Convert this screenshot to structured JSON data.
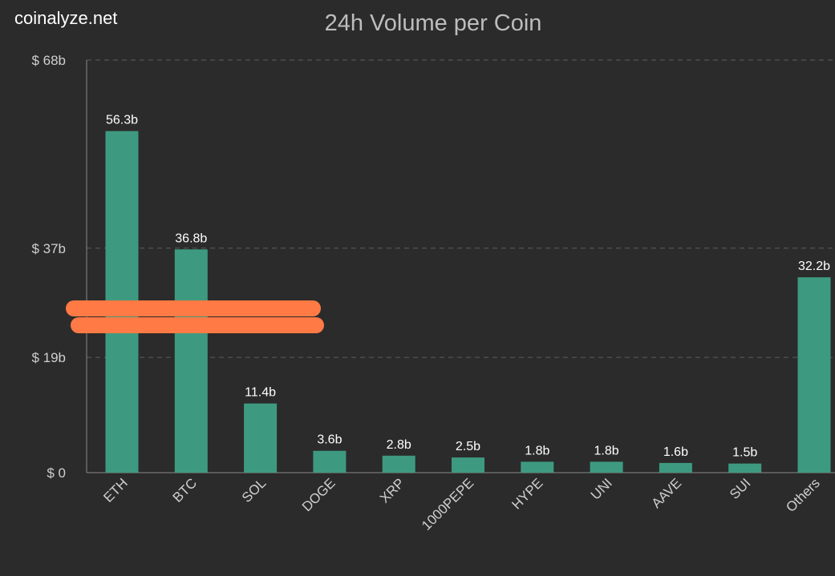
{
  "site": {
    "brand": "coinalyze.net"
  },
  "chart_data": {
    "type": "bar",
    "title": "24h Volume per Coin",
    "xlabel": "",
    "ylabel": "",
    "categories": [
      "ETH",
      "BTC",
      "SOL",
      "DOGE",
      "XRP",
      "1000PEPE",
      "HYPE",
      "UNI",
      "AAVE",
      "SUI",
      "Others"
    ],
    "values": [
      56.3,
      36.8,
      11.4,
      3.6,
      2.8,
      2.5,
      1.8,
      1.8,
      1.6,
      1.5,
      32.2
    ],
    "data_labels": [
      "56.3b",
      "36.8b",
      "11.4b",
      "3.6b",
      "2.8b",
      "2.5b",
      "1.8b",
      "1.8b",
      "1.6b",
      "1.5b",
      "32.2b"
    ],
    "yticks": [
      {
        "value": 0,
        "label": "$ 0"
      },
      {
        "value": 19,
        "label": "$ 19b"
      },
      {
        "value": 37,
        "label": "$ 37b"
      },
      {
        "value": 68,
        "label": "$ 68b"
      }
    ],
    "ylim": [
      0,
      68
    ],
    "grid": true,
    "bar_color": "#3d9a80",
    "background": "#2b2b2b",
    "redaction_color": "#ff7a45"
  }
}
